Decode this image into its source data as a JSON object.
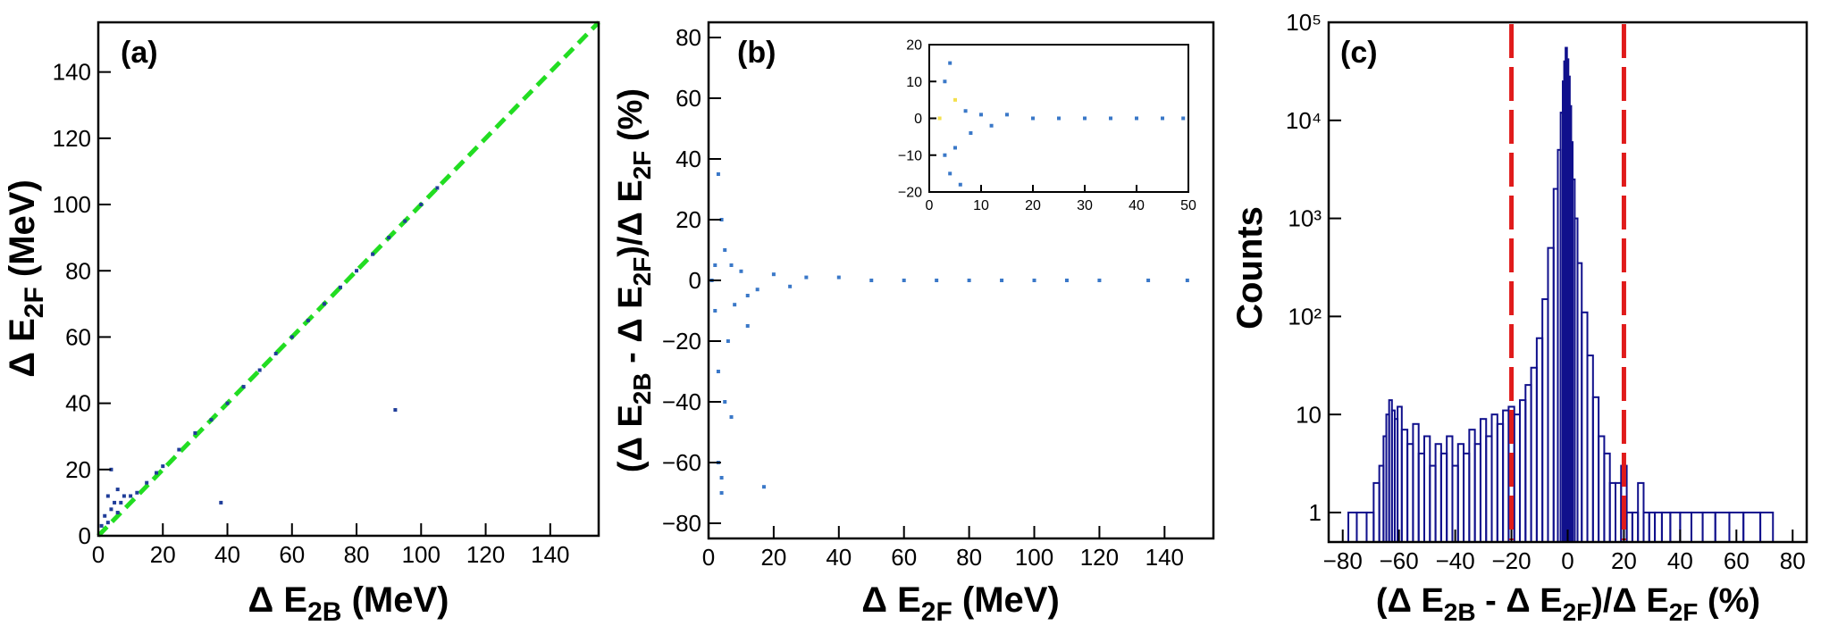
{
  "panels": {
    "a": {
      "label": "(a)",
      "xlabel": {
        "base": "Δ E",
        "sub": "2B",
        "suffix": " (MeV)"
      },
      "ylabel": {
        "base": "Δ E",
        "sub": "2F",
        "suffix": " (MeV)"
      }
    },
    "b": {
      "label": "(b)",
      "xlabel": {
        "base": "Δ E",
        "sub": "2F",
        "suffix": " (MeV)"
      },
      "ylabel": {
        "p1": "(Δ E",
        "s1": "2B",
        "p2": " - Δ E",
        "s2": "2F",
        "p3": ")/Δ E",
        "s3": "2F",
        "p4": " (%)"
      }
    },
    "c": {
      "label": "(c)",
      "xlabel": {
        "p1": "(Δ E",
        "s1": "2B",
        "p2": " - Δ E",
        "s2": "2F",
        "p3": ")/Δ E",
        "s3": "2F",
        "p4": " (%)"
      },
      "ylabel": "Counts"
    }
  },
  "colors": {
    "axis": "#000000",
    "diagonal": "#22dd22",
    "scatter_dark": "#1f3d99",
    "scatter_mid": "#3a78c8",
    "scatter_core": "#f4e04d",
    "histogram": "#10108c",
    "cut_lines": "#e01b1b"
  },
  "chart_data": [
    {
      "type": "scatter",
      "panel": "a",
      "xlim": [
        0,
        155
      ],
      "ylim": [
        0,
        155
      ],
      "xticks": [
        0,
        20,
        40,
        60,
        80,
        100,
        120,
        140
      ],
      "yticks": [
        0,
        20,
        40,
        60,
        80,
        100,
        120,
        140
      ],
      "reference_line": {
        "from": [
          0,
          0
        ],
        "to": [
          155,
          155
        ],
        "style": "dashed",
        "color": "#22dd22"
      },
      "series": [
        {
          "points": [
            [
              1,
              3
            ],
            [
              2,
              6
            ],
            [
              3,
              4
            ],
            [
              4,
              8
            ],
            [
              5,
              10
            ],
            [
              6,
              7
            ],
            [
              7,
              10
            ],
            [
              8,
              12
            ],
            [
              10,
              12
            ],
            [
              12,
              13
            ],
            [
              15,
              16
            ],
            [
              18,
              19
            ],
            [
              20,
              21
            ],
            [
              25,
              26
            ],
            [
              30,
              31
            ],
            [
              35,
              35
            ],
            [
              40,
              40
            ],
            [
              45,
              45
            ],
            [
              50,
              50
            ],
            [
              55,
              55
            ],
            [
              60,
              60
            ],
            [
              65,
              65
            ],
            [
              70,
              70
            ],
            [
              75,
              75
            ],
            [
              80,
              80
            ],
            [
              85,
              85
            ],
            [
              90,
              90
            ],
            [
              95,
              95
            ],
            [
              100,
              100
            ],
            [
              105,
              105
            ],
            [
              38,
              10
            ],
            [
              92,
              38
            ],
            [
              4,
              20
            ],
            [
              6,
              14
            ],
            [
              3,
              12
            ]
          ]
        }
      ]
    },
    {
      "type": "scatter",
      "panel": "b",
      "xlim": [
        0,
        155
      ],
      "ylim": [
        -85,
        85
      ],
      "xticks": [
        0,
        20,
        40,
        60,
        80,
        100,
        120,
        140
      ],
      "yticks": [
        -80,
        -60,
        -40,
        -20,
        0,
        20,
        40,
        60,
        80
      ],
      "series": [
        {
          "points": [
            [
              1,
              0
            ],
            [
              2,
              5
            ],
            [
              2,
              -10
            ],
            [
              3,
              -30
            ],
            [
              3,
              -60
            ],
            [
              4,
              -65
            ],
            [
              4,
              20
            ],
            [
              5,
              -40
            ],
            [
              5,
              10
            ],
            [
              6,
              -20
            ],
            [
              7,
              5
            ],
            [
              8,
              -8
            ],
            [
              10,
              3
            ],
            [
              12,
              -5
            ],
            [
              15,
              -3
            ],
            [
              20,
              2
            ],
            [
              25,
              -2
            ],
            [
              30,
              1
            ],
            [
              40,
              1
            ],
            [
              50,
              0
            ],
            [
              60,
              0
            ],
            [
              70,
              0
            ],
            [
              80,
              0
            ],
            [
              90,
              0
            ],
            [
              100,
              0
            ],
            [
              110,
              0
            ],
            [
              120,
              0
            ],
            [
              135,
              0
            ],
            [
              147,
              0
            ],
            [
              3,
              35
            ],
            [
              4,
              -70
            ],
            [
              17,
              -68
            ],
            [
              12,
              -15
            ],
            [
              7,
              -45
            ]
          ]
        }
      ],
      "inset": {
        "xlim": [
          0,
          50
        ],
        "ylim": [
          -20,
          20
        ],
        "xticks": [
          0,
          10,
          20,
          30,
          40,
          50
        ],
        "yticks": [
          -20,
          -10,
          0,
          10,
          20
        ],
        "points": [
          [
            2,
            0
          ],
          [
            3,
            10
          ],
          [
            3,
            -10
          ],
          [
            4,
            15
          ],
          [
            4,
            -15
          ],
          [
            5,
            5
          ],
          [
            5,
            -8
          ],
          [
            6,
            -18
          ],
          [
            7,
            2
          ],
          [
            8,
            -4
          ],
          [
            10,
            1
          ],
          [
            12,
            -2
          ],
          [
            15,
            1
          ],
          [
            20,
            0
          ],
          [
            25,
            0
          ],
          [
            30,
            0
          ],
          [
            35,
            0
          ],
          [
            40,
            0
          ],
          [
            45,
            0
          ],
          [
            49,
            0
          ]
        ]
      }
    },
    {
      "type": "bar",
      "panel": "c",
      "xlim": [
        -85,
        85
      ],
      "ylim_log": [
        0.5,
        100000
      ],
      "yscale": "log",
      "xticks": [
        -80,
        -60,
        -40,
        -20,
        0,
        20,
        40,
        60,
        80
      ],
      "yticks": [
        {
          "value": 1,
          "label": "1"
        },
        {
          "value": 10,
          "label": "10"
        },
        {
          "value": 100,
          "label": "10²"
        },
        {
          "value": 1000,
          "label": "10³"
        },
        {
          "value": 10000,
          "label": "10⁴"
        },
        {
          "value": 100000,
          "label": "10⁵"
        }
      ],
      "cut_lines": [
        -20,
        20
      ],
      "x": [
        -77,
        -73,
        -70,
        -68,
        -66,
        -65,
        -64,
        -63,
        -62,
        -61,
        -60,
        -58,
        -56,
        -54,
        -52,
        -50,
        -48,
        -46,
        -44,
        -42,
        -40,
        -38,
        -36,
        -34,
        -32,
        -30,
        -28,
        -26,
        -24,
        -22,
        -20,
        -18,
        -16,
        -14,
        -12,
        -10,
        -8,
        -6,
        -4,
        -3,
        -2,
        -1.5,
        -1,
        -0.5,
        0,
        0.5,
        1,
        1.5,
        2,
        3,
        4,
        6,
        8,
        10,
        12,
        14,
        16,
        18,
        20,
        22,
        24,
        26,
        28,
        30,
        32,
        35,
        38,
        42,
        46,
        50,
        55,
        60,
        65,
        72
      ],
      "counts": [
        1,
        1,
        1,
        2,
        3,
        6,
        10,
        14,
        11,
        9,
        12,
        7,
        5,
        8,
        4,
        6,
        3,
        5,
        4,
        6,
        3,
        5,
        4,
        7,
        5,
        9,
        6,
        10,
        8,
        11,
        12,
        10,
        14,
        20,
        30,
        60,
        150,
        500,
        2000,
        5000,
        12000,
        25000,
        40000,
        55000,
        42000,
        28000,
        14000,
        6000,
        2500,
        1000,
        350,
        110,
        40,
        15,
        6,
        4,
        2,
        2,
        3,
        1,
        1,
        2,
        1,
        1,
        1,
        1,
        1,
        1,
        1,
        1,
        1,
        1,
        1,
        1
      ]
    }
  ]
}
